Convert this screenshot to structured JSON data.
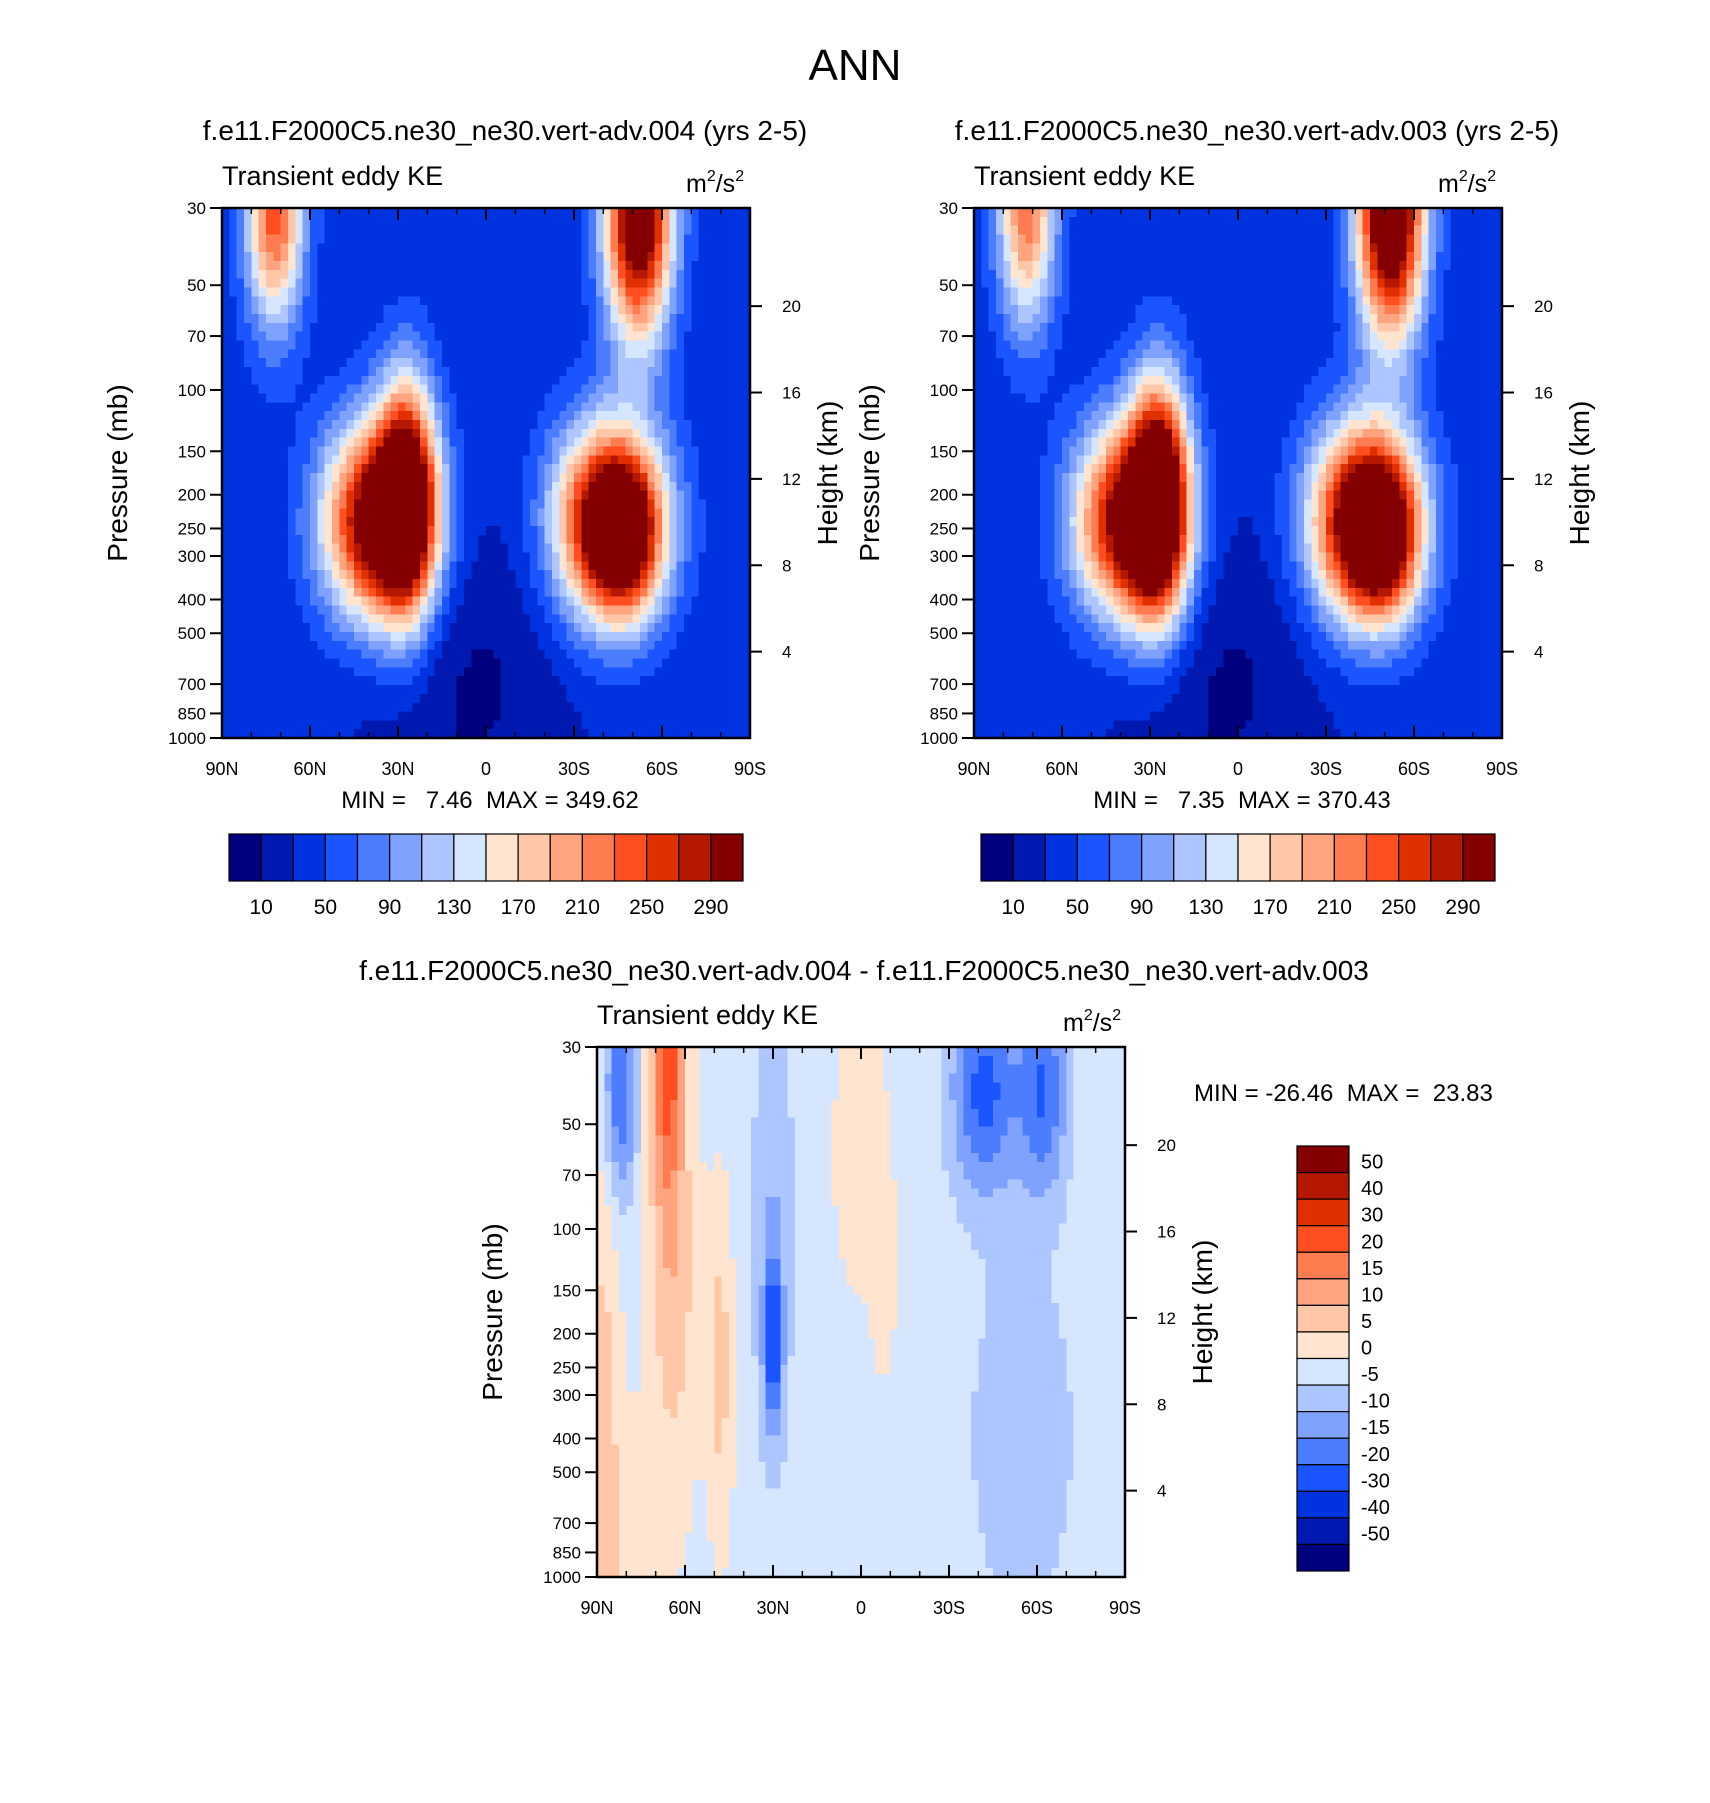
{
  "page_title": "ANN",
  "colors": {
    "diverging": [
      "#00007f",
      "#0019b0",
      "#0033e0",
      "#1a55ff",
      "#4c7dff",
      "#7fa1ff",
      "#aec6ff",
      "#d6e6ff",
      "#ffe4d0",
      "#ffc6a8",
      "#ffa47e",
      "#ff7c50",
      "#ff4f20",
      "#e03000",
      "#b41800",
      "#840000"
    ],
    "axis": "#000000",
    "background": "#ffffff"
  },
  "chart_data": [
    {
      "type": "heatmap",
      "id": "panel-004",
      "title": "f.e11.F2000C5.ne30_ne30.vert-adv.004 (yrs 2-5)",
      "subtitle": "Transient eddy KE",
      "units_base": "m",
      "units_sup": "2",
      "units_mid": "/s",
      "units_sup2": "2",
      "xlabel": "",
      "ylabel": "Pressure (mb)",
      "ylabel_right": "Height (km)",
      "xlim": [
        90,
        -90
      ],
      "ylim": [
        1000,
        30
      ],
      "x_ticks": [
        "90N",
        "60N",
        "30N",
        "0",
        "30S",
        "60S",
        "90S"
      ],
      "y_ticks": [
        "30",
        "50",
        "70",
        "100",
        "150",
        "200",
        "250",
        "300",
        "400",
        "500",
        "700",
        "850",
        "1000"
      ],
      "right_ticks": [
        "20",
        "16",
        "12",
        "8",
        "4"
      ],
      "stats": "MIN =   7.46  MAX = 349.62",
      "levels": [
        10,
        30,
        50,
        70,
        90,
        110,
        130,
        150,
        170,
        190,
        210,
        230,
        250,
        270,
        290
      ],
      "colorbar_labels": [
        "10",
        "50",
        "90",
        "130",
        "170",
        "210",
        "250",
        "290"
      ],
      "background_value": 35,
      "field": [
        {
          "lat": 72,
          "p": 30,
          "amp": 210,
          "slat": 7,
          "sz": 0.55
        },
        {
          "lat": -52,
          "p": 30,
          "amp": 330,
          "slat": 8,
          "sz": 0.6
        },
        {
          "lat": 37,
          "p": 240,
          "amp": 300,
          "slat": 13,
          "sz": 0.45
        },
        {
          "lat": 27,
          "p": 200,
          "amp": 250,
          "slat": 7,
          "sz": 0.55
        },
        {
          "lat": -42,
          "p": 240,
          "amp": 310,
          "slat": 13,
          "sz": 0.45
        },
        {
          "lat": -48,
          "p": 270,
          "amp": 120,
          "slat": 8,
          "sz": 0.35
        },
        {
          "lat": 5,
          "p": 700,
          "amp": -28,
          "slat": 25,
          "sz": 0.8
        }
      ]
    },
    {
      "type": "heatmap",
      "id": "panel-003",
      "title": "f.e11.F2000C5.ne30_ne30.vert-adv.003 (yrs 2-5)",
      "subtitle": "Transient eddy KE",
      "units_base": "m",
      "units_sup": "2",
      "units_mid": "/s",
      "units_sup2": "2",
      "xlabel": "",
      "ylabel": "Pressure (mb)",
      "ylabel_right": "Height (km)",
      "xlim": [
        90,
        -90
      ],
      "ylim": [
        1000,
        30
      ],
      "x_ticks": [
        "90N",
        "60N",
        "30N",
        "0",
        "30S",
        "60S",
        "90S"
      ],
      "y_ticks": [
        "30",
        "50",
        "70",
        "100",
        "150",
        "200",
        "250",
        "300",
        "400",
        "500",
        "700",
        "850",
        "1000"
      ],
      "right_ticks": [
        "20",
        "16",
        "12",
        "8",
        "4"
      ],
      "stats": "MIN =   7.35  MAX = 370.43",
      "levels": [
        10,
        30,
        50,
        70,
        90,
        110,
        130,
        150,
        170,
        190,
        210,
        230,
        250,
        270,
        290
      ],
      "colorbar_labels": [
        "10",
        "50",
        "90",
        "130",
        "170",
        "210",
        "250",
        "290"
      ],
      "background_value": 35,
      "field": [
        {
          "lat": 72,
          "p": 30,
          "amp": 190,
          "slat": 7,
          "sz": 0.55
        },
        {
          "lat": -52,
          "p": 30,
          "amp": 350,
          "slat": 8,
          "sz": 0.6
        },
        {
          "lat": 37,
          "p": 240,
          "amp": 290,
          "slat": 13,
          "sz": 0.45
        },
        {
          "lat": 27,
          "p": 200,
          "amp": 270,
          "slat": 7,
          "sz": 0.55
        },
        {
          "lat": -43,
          "p": 240,
          "amp": 320,
          "slat": 13,
          "sz": 0.45
        },
        {
          "lat": -50,
          "p": 270,
          "amp": 140,
          "slat": 8,
          "sz": 0.35
        },
        {
          "lat": 5,
          "p": 700,
          "amp": -28,
          "slat": 25,
          "sz": 0.8
        }
      ]
    },
    {
      "type": "heatmap",
      "id": "panel-diff",
      "title": "f.e11.F2000C5.ne30_ne30.vert-adv.004 - f.e11.F2000C5.ne30_ne30.vert-adv.003",
      "subtitle": "Transient eddy KE",
      "units_base": "m",
      "units_sup": "2",
      "units_mid": "/s",
      "units_sup2": "2",
      "xlabel": "",
      "ylabel": "Pressure (mb)",
      "ylabel_right": "Height (km)",
      "xlim": [
        90,
        -90
      ],
      "ylim": [
        1000,
        30
      ],
      "x_ticks": [
        "90N",
        "60N",
        "30N",
        "0",
        "30S",
        "60S",
        "90S"
      ],
      "y_ticks": [
        "30",
        "50",
        "70",
        "100",
        "150",
        "200",
        "250",
        "300",
        "400",
        "500",
        "700",
        "850",
        "1000"
      ],
      "right_ticks": [
        "20",
        "16",
        "12",
        "8",
        "4"
      ],
      "stats": "MIN = -26.46  MAX =  23.83",
      "levels": [
        -50,
        -40,
        -30,
        -20,
        -15,
        -10,
        -5,
        0,
        5,
        10,
        15,
        20,
        30,
        40,
        50
      ],
      "colorbar_labels": [
        "50",
        "40",
        "30",
        "20",
        "15",
        "10",
        "5",
        "0",
        "-5",
        "-10",
        "-15",
        "-20",
        "-30",
        "-40",
        "-50"
      ],
      "background_value": -2,
      "field": [
        {
          "lat": 66,
          "p": 30,
          "amp": 24,
          "slat": 4,
          "sz": 0.7
        },
        {
          "lat": 64,
          "p": 150,
          "amp": 10,
          "slat": 6,
          "sz": 0.9
        },
        {
          "lat": 48,
          "p": 250,
          "amp": 9,
          "slat": 3,
          "sz": 0.8
        },
        {
          "lat": 88,
          "p": 250,
          "amp": 8,
          "slat": 4,
          "sz": 1.2
        },
        {
          "lat": 85,
          "p": 850,
          "amp": 6,
          "slat": 12,
          "sz": 0.6
        },
        {
          "lat": 30,
          "p": 210,
          "amp": -22,
          "slat": 2,
          "sz": 0.35
        },
        {
          "lat": 30,
          "p": 100,
          "amp": -8,
          "slat": 5,
          "sz": 1.2
        },
        {
          "lat": 82,
          "p": 40,
          "amp": -18,
          "slat": 4,
          "sz": 0.5
        },
        {
          "lat": -42,
          "p": 40,
          "amp": -20,
          "slat": 8,
          "sz": 0.5
        },
        {
          "lat": -62,
          "p": 40,
          "amp": -18,
          "slat": 6,
          "sz": 0.5
        },
        {
          "lat": -55,
          "p": 400,
          "amp": -8,
          "slat": 12,
          "sz": 0.8
        },
        {
          "lat": 0,
          "p": 60,
          "amp": 4,
          "slat": 8,
          "sz": 0.8
        },
        {
          "lat": -8,
          "p": 150,
          "amp": 3,
          "slat": 3,
          "sz": 0.5
        }
      ]
    }
  ]
}
